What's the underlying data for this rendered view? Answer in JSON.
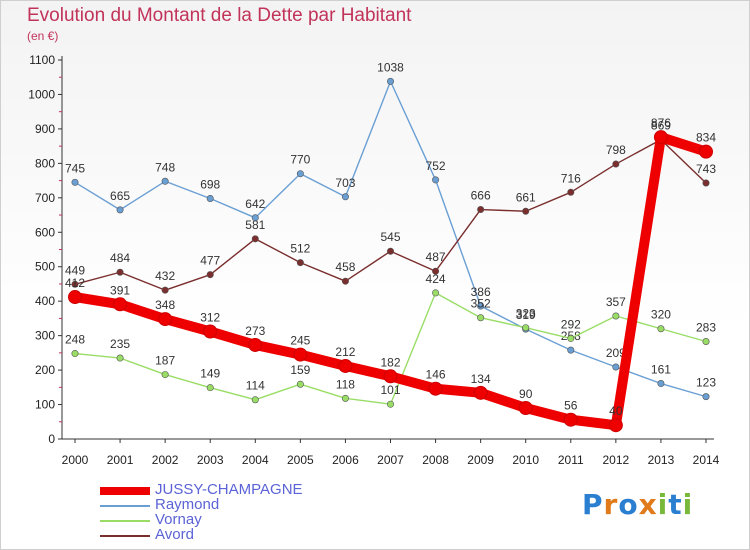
{
  "header": {
    "title": "Evolution du Montant de la Dette par Habitant",
    "unit": "(en €)"
  },
  "chart_data": {
    "type": "line",
    "title": "Evolution du Montant de la Dette par Habitant",
    "subtitle": "(en €)",
    "xlabel": "",
    "ylabel": "",
    "x": [
      "2000",
      "2001",
      "2002",
      "2003",
      "2004",
      "2005",
      "2006",
      "2007",
      "2008",
      "2009",
      "2010",
      "2011",
      "2012",
      "2013",
      "2014"
    ],
    "ylim": [
      0,
      1100
    ],
    "yticks": [
      0,
      100,
      200,
      300,
      400,
      500,
      600,
      700,
      800,
      900,
      1000,
      1100
    ],
    "grid": false,
    "legend_position": "bottom-left",
    "series": [
      {
        "name": "JUSSY-CHAMPAGNE",
        "color": "#ee0000",
        "values": [
          412,
          391,
          348,
          312,
          273,
          245,
          212,
          182,
          146,
          134,
          90,
          56,
          40,
          876,
          834
        ]
      },
      {
        "name": "Raymond",
        "color": "#6a9fd4",
        "values": [
          745,
          665,
          748,
          698,
          642,
          770,
          703,
          1038,
          752,
          386,
          319,
          258,
          209,
          161,
          123
        ]
      },
      {
        "name": "Vornay",
        "color": "#99dd66",
        "values": [
          248,
          235,
          187,
          149,
          114,
          159,
          118,
          101,
          424,
          352,
          323,
          292,
          357,
          320,
          283
        ]
      },
      {
        "name": "Avord",
        "color": "#7a2e2e",
        "values": [
          449,
          484,
          432,
          477,
          581,
          512,
          458,
          545,
          487,
          666,
          661,
          716,
          798,
          869,
          743
        ]
      }
    ]
  },
  "legend": {
    "items": [
      {
        "label": "JUSSY-CHAMPAGNE"
      },
      {
        "label": "Raymond"
      },
      {
        "label": "Vornay"
      },
      {
        "label": "Avord"
      }
    ]
  },
  "logo": {
    "text": "Proxiti"
  }
}
